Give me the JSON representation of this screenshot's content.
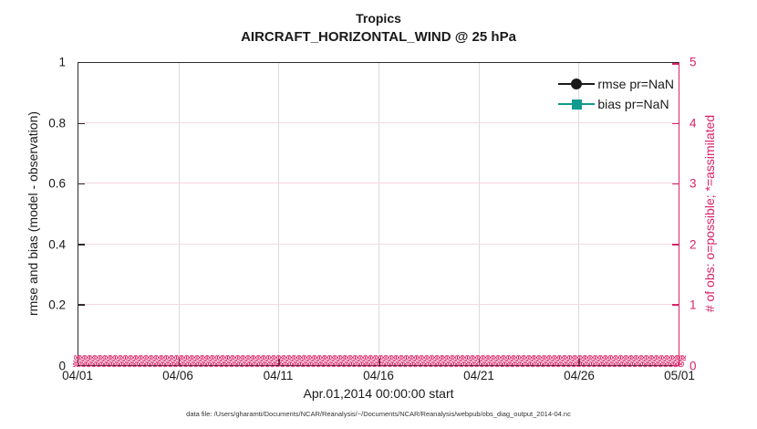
{
  "title": {
    "line1": "Tropics",
    "line2": "AIRCRAFT_HORIZONTAL_WIND @ 25 hPa"
  },
  "legend": [
    {
      "label": "rmse pr=NaN",
      "marker": "circle",
      "color": "#1a1a1a"
    },
    {
      "label": "bias pr=NaN",
      "marker": "square",
      "color": "#0f9b8e"
    }
  ],
  "axes": {
    "left": {
      "label": "rmse and bias (model - observation)",
      "ticks": [
        "0",
        "0.2",
        "0.4",
        "0.6",
        "0.8",
        "1"
      ],
      "color": "#1a1a1a"
    },
    "right": {
      "label": "# of obs: o=possible; *=assimilated",
      "ticks": [
        "0",
        "1",
        "2",
        "3",
        "4",
        "5"
      ],
      "color": "#d92368"
    },
    "x": {
      "label": "Apr.01,2014 00:00:00 start",
      "ticks": [
        "04/01",
        "04/06",
        "04/11",
        "04/16",
        "04/21",
        "04/26",
        "05/01"
      ]
    }
  },
  "obs_band": {
    "glyph": "⊗",
    "rows": 2,
    "repeat": 120,
    "color": "#d92368"
  },
  "footer": {
    "datafile": "data file: /Users/gharamti/Documents/NCAR/Reanalysis/~/Documents/NCAR/Reanalysis/webpub/obs_diag_output_2014-04.nc"
  },
  "colors": {
    "accent_pink": "#d92368",
    "bias_teal": "#0f9b8e",
    "axis_black": "#1a1a1a",
    "grid_gray": "#dcdcdc",
    "grid_pink": "#f6d7e4"
  },
  "chart_data": {
    "type": "line",
    "title": "Tropics — AIRCRAFT_HORIZONTAL_WIND @ 25 hPa",
    "xlabel": "Apr.01,2014 00:00:00 start",
    "x_tick_labels": [
      "04/01",
      "04/06",
      "04/11",
      "04/16",
      "04/21",
      "04/26",
      "05/01"
    ],
    "y_left": {
      "label": "rmse and bias (model - observation)",
      "range": [
        0,
        1
      ],
      "tick_step": 0.2
    },
    "y_right": {
      "label": "# of obs: o=possible; *=assimilated",
      "range": [
        0,
        5
      ],
      "tick_step": 1
    },
    "grid": true,
    "legend_position": "upper right inside",
    "series": [
      {
        "name": "rmse pr=NaN",
        "axis": "left",
        "color": "#1a1a1a",
        "marker": "filled-circle",
        "values": "NaN — no curve plotted"
      },
      {
        "name": "bias pr=NaN",
        "axis": "left",
        "color": "#0f9b8e",
        "marker": "filled-square",
        "values": "NaN — no curve plotted"
      },
      {
        "name": "# obs possible (o)",
        "axis": "right",
        "color": "#d92368",
        "marker": "o",
        "values": "0 at every time from 04/01 to 05/01 (dense band of markers at y=0)"
      },
      {
        "name": "# obs assimilated (*)",
        "axis": "right",
        "color": "#d92368",
        "marker": "*",
        "values": "0 at every time from 04/01 to 05/01 (dense band of markers at y=0)"
      }
    ]
  }
}
